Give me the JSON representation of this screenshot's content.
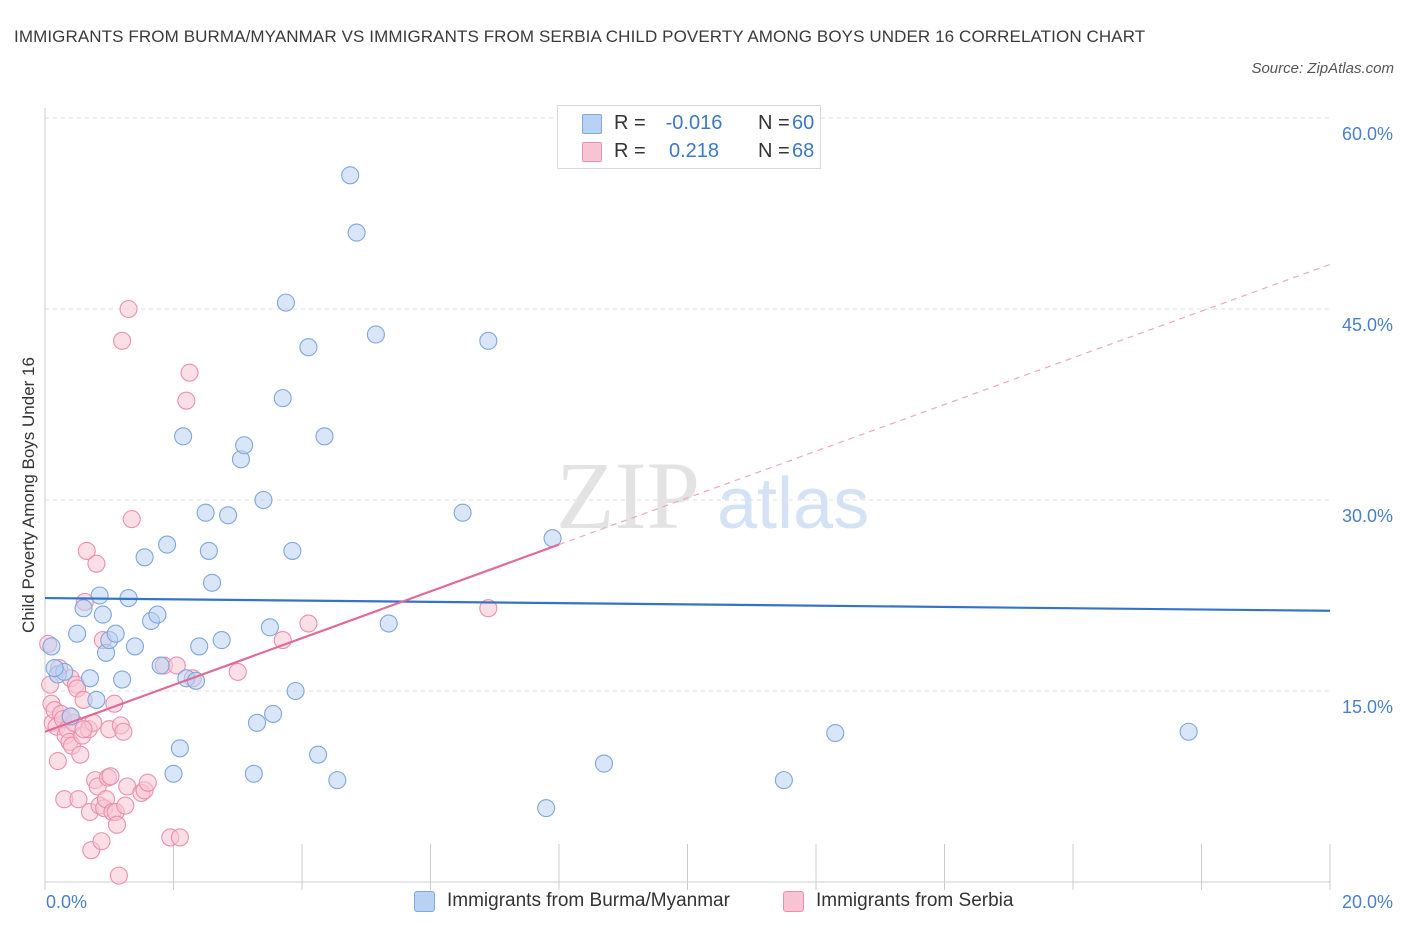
{
  "title": "IMMIGRANTS FROM BURMA/MYANMAR VS IMMIGRANTS FROM SERBIA CHILD POVERTY AMONG BOYS UNDER 16 CORRELATION CHART",
  "source": "Source: ZipAtlas.com",
  "watermark": {
    "zip": "ZIP",
    "atlas": "atlas"
  },
  "colors": {
    "blue_fill": "#b9d1f3",
    "blue_stroke": "#7fa6dd",
    "blue_line": "#3573c9",
    "pink_fill": "#f8c4d4",
    "pink_stroke": "#ec8fae",
    "pink_line": "#e26a97",
    "tick_text": "#4a7fc8",
    "grid": "#dddddd"
  },
  "legend": {
    "rows": [
      {
        "r_label": "R =",
        "r_value": "-0.016",
        "n_label": "N =",
        "n_value": "60"
      },
      {
        "r_label": "R =",
        "r_value": "0.218",
        "n_label": "N =",
        "n_value": "68"
      }
    ]
  },
  "chart_data": {
    "type": "scatter",
    "title": "IMMIGRANTS FROM BURMA/MYANMAR VS IMMIGRANTS FROM SERBIA CHILD POVERTY AMONG BOYS UNDER 16 CORRELATION CHART",
    "xlabel": "",
    "ylabel": "Child Poverty Among Boys Under 16",
    "xlim": [
      0,
      20
    ],
    "ylim": [
      0,
      60
    ],
    "x_tick_labels": [
      "0.0%",
      "20.0%"
    ],
    "y_ticks": [
      15,
      30,
      45,
      60
    ],
    "y_tick_labels": [
      "15.0%",
      "30.0%",
      "45.0%",
      "60.0%"
    ],
    "grid": true,
    "legend_position": "top-center",
    "series": [
      {
        "name": "Immigrants from Burma/Myanmar",
        "color": "blue",
        "r": -0.016,
        "n": 60,
        "trend": {
          "x": [
            0,
            20
          ],
          "y": [
            22.3,
            21.3
          ],
          "style": "solid"
        },
        "points": [
          [
            0.1,
            18.5
          ],
          [
            0.2,
            16.3
          ],
          [
            0.3,
            16.5
          ],
          [
            0.4,
            13.0
          ],
          [
            0.5,
            19.5
          ],
          [
            0.6,
            21.5
          ],
          [
            0.7,
            16.0
          ],
          [
            0.8,
            14.3
          ],
          [
            0.85,
            22.5
          ],
          [
            0.9,
            21.0
          ],
          [
            0.95,
            18.0
          ],
          [
            1.0,
            19.0
          ],
          [
            1.1,
            19.5
          ],
          [
            1.2,
            15.9
          ],
          [
            1.3,
            22.3
          ],
          [
            1.4,
            18.5
          ],
          [
            1.55,
            25.5
          ],
          [
            1.65,
            20.5
          ],
          [
            1.75,
            21.0
          ],
          [
            1.8,
            17.0
          ],
          [
            1.9,
            26.5
          ],
          [
            2.0,
            8.5
          ],
          [
            2.1,
            10.5
          ],
          [
            2.15,
            35.0
          ],
          [
            2.2,
            16.0
          ],
          [
            2.35,
            15.8
          ],
          [
            2.4,
            18.5
          ],
          [
            2.5,
            29.0
          ],
          [
            2.55,
            26.0
          ],
          [
            2.6,
            23.5
          ],
          [
            2.75,
            19.0
          ],
          [
            2.85,
            28.8
          ],
          [
            3.05,
            33.2
          ],
          [
            3.1,
            34.3
          ],
          [
            3.25,
            8.5
          ],
          [
            3.3,
            12.5
          ],
          [
            3.4,
            30.0
          ],
          [
            3.5,
            20.0
          ],
          [
            3.55,
            13.2
          ],
          [
            3.7,
            38.0
          ],
          [
            3.75,
            45.5
          ],
          [
            3.85,
            26.0
          ],
          [
            3.9,
            15.0
          ],
          [
            4.1,
            42.0
          ],
          [
            4.25,
            10.0
          ],
          [
            4.35,
            35.0
          ],
          [
            4.55,
            8.0
          ],
          [
            4.75,
            55.5
          ],
          [
            4.85,
            51.0
          ],
          [
            5.15,
            43.0
          ],
          [
            5.35,
            20.3
          ],
          [
            6.5,
            29.0
          ],
          [
            6.9,
            42.5
          ],
          [
            7.8,
            5.8
          ],
          [
            7.9,
            27.0
          ],
          [
            8.7,
            9.3
          ],
          [
            11.5,
            8.0
          ],
          [
            12.3,
            11.7
          ],
          [
            17.8,
            11.8
          ],
          [
            0.15,
            16.8
          ]
        ]
      },
      {
        "name": "Immigrants from Serbia",
        "color": "pink",
        "r": 0.218,
        "n": 68,
        "trend": {
          "x": [
            0,
            8.0
          ],
          "y": [
            11.8,
            26.5
          ],
          "style": "solid",
          "dashed_extension": {
            "x": [
              8.0,
              20
            ],
            "y": [
              26.5,
              48.5
            ]
          }
        },
        "points": [
          [
            0.05,
            18.7
          ],
          [
            0.08,
            15.5
          ],
          [
            0.1,
            14.0
          ],
          [
            0.12,
            12.5
          ],
          [
            0.15,
            13.5
          ],
          [
            0.18,
            12.2
          ],
          [
            0.2,
            9.5
          ],
          [
            0.22,
            16.8
          ],
          [
            0.25,
            13.2
          ],
          [
            0.28,
            12.8
          ],
          [
            0.3,
            6.5
          ],
          [
            0.32,
            11.5
          ],
          [
            0.35,
            12.0
          ],
          [
            0.38,
            11.0
          ],
          [
            0.4,
            16.0
          ],
          [
            0.42,
            10.7
          ],
          [
            0.45,
            12.5
          ],
          [
            0.48,
            15.5
          ],
          [
            0.5,
            15.2
          ],
          [
            0.52,
            6.5
          ],
          [
            0.55,
            10.0
          ],
          [
            0.58,
            11.5
          ],
          [
            0.6,
            14.3
          ],
          [
            0.62,
            22.0
          ],
          [
            0.65,
            26.0
          ],
          [
            0.68,
            12.0
          ],
          [
            0.7,
            5.5
          ],
          [
            0.72,
            2.5
          ],
          [
            0.75,
            12.5
          ],
          [
            0.78,
            8.0
          ],
          [
            0.8,
            25.0
          ],
          [
            0.82,
            7.5
          ],
          [
            0.85,
            6.0
          ],
          [
            0.88,
            3.2
          ],
          [
            0.9,
            19.0
          ],
          [
            0.92,
            5.8
          ],
          [
            0.95,
            6.5
          ],
          [
            0.98,
            8.2
          ],
          [
            1.0,
            12.0
          ],
          [
            1.02,
            8.3
          ],
          [
            1.05,
            5.5
          ],
          [
            1.08,
            14.0
          ],
          [
            1.1,
            5.5
          ],
          [
            1.12,
            4.5
          ],
          [
            1.15,
            0.5
          ],
          [
            1.18,
            12.3
          ],
          [
            1.2,
            42.5
          ],
          [
            1.22,
            11.8
          ],
          [
            1.25,
            6.0
          ],
          [
            1.28,
            7.5
          ],
          [
            1.3,
            45.0
          ],
          [
            1.35,
            28.5
          ],
          [
            1.5,
            7.0
          ],
          [
            1.55,
            7.2
          ],
          [
            1.6,
            7.8
          ],
          [
            1.85,
            17.0
          ],
          [
            1.95,
            3.5
          ],
          [
            2.05,
            17.0
          ],
          [
            2.1,
            3.5
          ],
          [
            2.2,
            37.8
          ],
          [
            2.25,
            40.0
          ],
          [
            2.3,
            16.0
          ],
          [
            3.0,
            16.5
          ],
          [
            3.7,
            19.0
          ],
          [
            4.1,
            20.3
          ],
          [
            6.9,
            21.5
          ],
          [
            0.4,
            13.0
          ],
          [
            0.6,
            12.0
          ]
        ]
      }
    ]
  },
  "bottom_legend": [
    {
      "label": "Immigrants from Burma/Myanmar"
    },
    {
      "label": "Immigrants from Serbia"
    }
  ]
}
